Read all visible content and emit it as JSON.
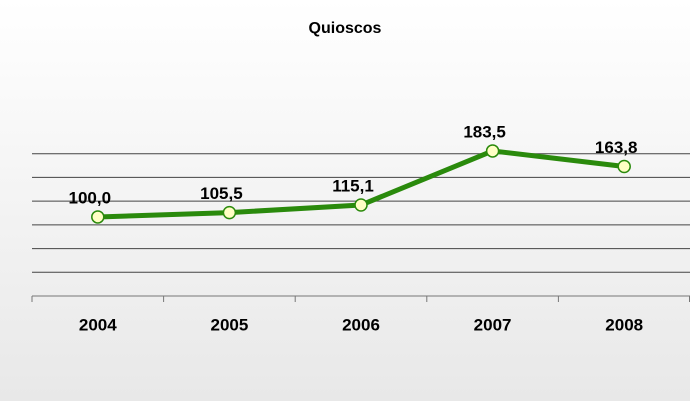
{
  "chart_data": {
    "type": "line",
    "title": "Quioscos",
    "categories": [
      "2004",
      "2005",
      "2006",
      "2007",
      "2008"
    ],
    "series": [
      {
        "name": "Quioscos",
        "color": "#2a8a0c",
        "values": [
          100.0,
          105.5,
          115.1,
          183.5,
          163.8
        ],
        "value_labels": [
          "100,0",
          "105,5",
          "115,1",
          "183,5",
          "163,8"
        ]
      }
    ],
    "ylim": [
      0,
      210
    ],
    "yticks": [
      0,
      30,
      60,
      90,
      120,
      150,
      180
    ],
    "grid": true
  }
}
